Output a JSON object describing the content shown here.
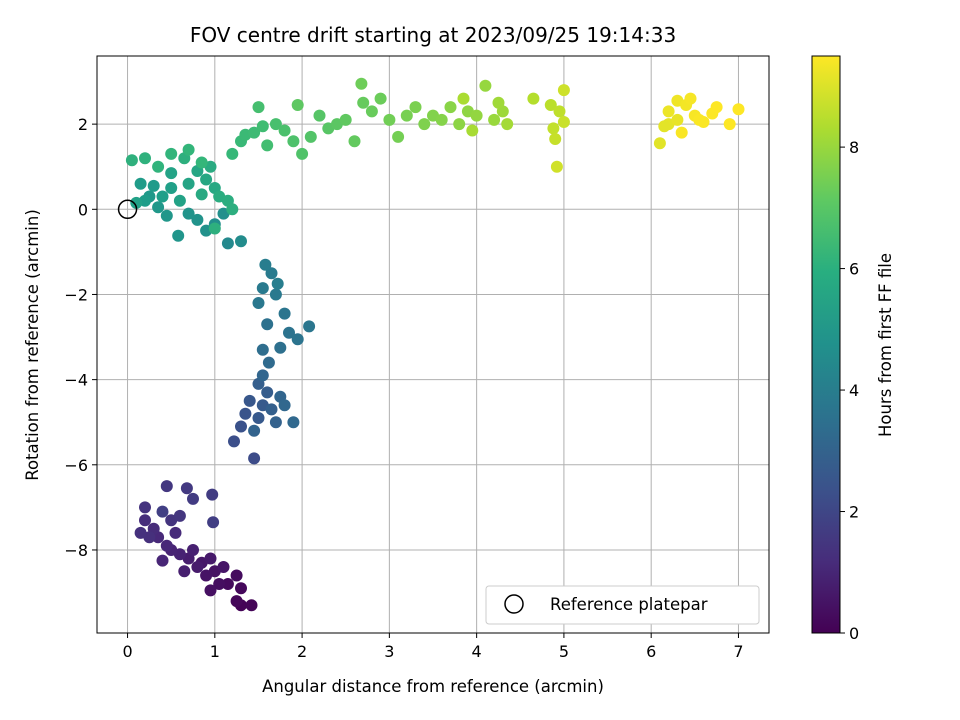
{
  "chart_data": {
    "type": "scatter",
    "title": "FOV centre drift starting at 2023/09/25 19:14:33",
    "xlabel": "Angular distance from reference (arcmin)",
    "ylabel": "Rotation from reference (arcmin)",
    "xlim": [
      -0.35,
      7.35
    ],
    "ylim": [
      -9.95,
      3.6
    ],
    "xticks": [
      0,
      1,
      2,
      3,
      4,
      5,
      6,
      7
    ],
    "yticks": [
      -8,
      -6,
      -4,
      -2,
      0,
      2
    ],
    "grid": true,
    "colormap": "viridis",
    "colorbar": {
      "label": "Hours from first FF file",
      "range": [
        0,
        9.5
      ],
      "ticks": [
        0,
        2,
        4,
        6,
        8
      ]
    },
    "legend": {
      "position": "bottom-right",
      "entries": [
        {
          "label": "Reference platepar",
          "marker": "hollow-circle"
        }
      ]
    },
    "reference_point": {
      "x": 0,
      "y": 0
    },
    "series": [
      {
        "points": [
          [
            1.3,
            -9.3,
            0.05
          ],
          [
            1.42,
            -9.3,
            0.1
          ],
          [
            1.25,
            -9.2,
            0.15
          ],
          [
            1.3,
            -8.9,
            0.2
          ],
          [
            1.15,
            -8.8,
            0.25
          ],
          [
            1.25,
            -8.6,
            0.3
          ],
          [
            1.05,
            -8.8,
            0.35
          ],
          [
            0.95,
            -8.95,
            0.4
          ],
          [
            1.0,
            -8.5,
            0.45
          ],
          [
            0.9,
            -8.6,
            0.5
          ],
          [
            1.1,
            -8.4,
            0.55
          ],
          [
            0.85,
            -8.3,
            0.6
          ],
          [
            0.95,
            -8.2,
            0.65
          ],
          [
            0.8,
            -8.4,
            0.7
          ],
          [
            0.7,
            -8.2,
            0.75
          ],
          [
            0.65,
            -8.5,
            0.8
          ],
          [
            0.75,
            -8.0,
            0.85
          ],
          [
            0.6,
            -8.1,
            0.9
          ],
          [
            0.5,
            -8.0,
            0.95
          ],
          [
            0.4,
            -8.25,
            1.0
          ],
          [
            0.45,
            -7.9,
            1.05
          ],
          [
            0.35,
            -7.7,
            1.1
          ],
          [
            0.55,
            -7.6,
            1.15
          ],
          [
            0.3,
            -7.5,
            1.2
          ],
          [
            0.2,
            -7.3,
            1.25
          ],
          [
            0.25,
            -7.7,
            1.3
          ],
          [
            0.15,
            -7.6,
            1.35
          ],
          [
            0.2,
            -7.0,
            1.4
          ],
          [
            0.5,
            -7.3,
            1.45
          ],
          [
            0.6,
            -7.2,
            1.5
          ],
          [
            0.45,
            -6.5,
            1.55
          ],
          [
            0.68,
            -6.55,
            1.6
          ],
          [
            0.75,
            -6.8,
            1.65
          ],
          [
            0.97,
            -6.7,
            1.7
          ],
          [
            0.98,
            -7.35,
            1.75
          ],
          [
            0.4,
            -7.1,
            1.8
          ],
          [
            1.45,
            -5.85,
            2.2
          ],
          [
            1.22,
            -5.45,
            2.3
          ],
          [
            1.3,
            -5.1,
            2.4
          ],
          [
            1.35,
            -4.8,
            2.5
          ],
          [
            1.4,
            -4.5,
            2.6
          ],
          [
            1.5,
            -4.9,
            2.65
          ],
          [
            1.55,
            -4.6,
            2.7
          ],
          [
            1.6,
            -4.3,
            2.8
          ],
          [
            1.5,
            -4.1,
            2.85
          ],
          [
            1.65,
            -4.7,
            2.9
          ],
          [
            1.7,
            -5.0,
            2.95
          ],
          [
            1.45,
            -5.2,
            3.0
          ],
          [
            1.75,
            -4.4,
            3.05
          ],
          [
            1.55,
            -3.9,
            3.1
          ],
          [
            1.8,
            -4.6,
            3.15
          ],
          [
            1.9,
            -5.0,
            3.2
          ],
          [
            1.62,
            -3.6,
            3.3
          ],
          [
            1.55,
            -3.3,
            3.4
          ],
          [
            1.75,
            -3.25,
            3.5
          ],
          [
            1.6,
            -2.7,
            3.55
          ],
          [
            1.85,
            -2.9,
            3.6
          ],
          [
            1.95,
            -3.05,
            3.65
          ],
          [
            1.8,
            -2.45,
            3.7
          ],
          [
            2.08,
            -2.75,
            3.75
          ],
          [
            1.5,
            -2.2,
            3.8
          ],
          [
            1.7,
            -2.0,
            3.85
          ],
          [
            1.55,
            -1.85,
            3.9
          ],
          [
            1.65,
            -1.5,
            3.95
          ],
          [
            1.58,
            -1.3,
            4.0
          ],
          [
            1.72,
            -1.75,
            4.05
          ],
          [
            1.15,
            -0.8,
            4.5
          ],
          [
            1.3,
            -0.75,
            4.6
          ],
          [
            1.0,
            -0.35,
            4.7
          ],
          [
            1.1,
            -0.1,
            4.75
          ],
          [
            0.9,
            -0.5,
            4.8
          ],
          [
            0.8,
            -0.25,
            4.85
          ],
          [
            0.7,
            -0.1,
            4.9
          ],
          [
            0.58,
            -0.62,
            4.95
          ],
          [
            0.45,
            -0.15,
            5.0
          ],
          [
            0.35,
            0.05,
            5.05
          ],
          [
            0.25,
            0.3,
            5.1
          ],
          [
            0.3,
            0.55,
            5.15
          ],
          [
            0.15,
            0.6,
            5.2
          ],
          [
            0.2,
            0.2,
            5.25
          ],
          [
            0.4,
            0.3,
            5.3
          ],
          [
            0.5,
            0.5,
            5.35
          ],
          [
            0.1,
            0.15,
            5.4
          ],
          [
            0.6,
            0.2,
            5.45
          ],
          [
            0.5,
            0.85,
            5.5
          ],
          [
            0.7,
            0.6,
            5.55
          ],
          [
            0.8,
            0.9,
            5.6
          ],
          [
            0.9,
            0.7,
            5.65
          ],
          [
            1.0,
            0.5,
            5.7
          ],
          [
            0.85,
            0.35,
            5.75
          ],
          [
            0.95,
            1.0,
            5.8
          ],
          [
            1.05,
            0.3,
            5.85
          ],
          [
            1.15,
            0.2,
            5.9
          ],
          [
            1.2,
            0.0,
            5.95
          ],
          [
            1.0,
            -0.45,
            6.0
          ],
          [
            0.65,
            1.2,
            6.0
          ],
          [
            0.05,
            1.15,
            6.05
          ],
          [
            0.2,
            1.2,
            6.1
          ],
          [
            0.35,
            1.0,
            6.15
          ],
          [
            0.5,
            1.3,
            6.2
          ],
          [
            0.7,
            1.4,
            6.25
          ],
          [
            0.85,
            1.1,
            6.3
          ],
          [
            1.2,
            1.3,
            6.35
          ],
          [
            1.3,
            1.6,
            6.4
          ],
          [
            1.35,
            1.75,
            6.45
          ],
          [
            1.45,
            1.8,
            6.5
          ],
          [
            1.55,
            1.95,
            6.55
          ],
          [
            1.6,
            1.5,
            6.6
          ],
          [
            1.5,
            2.4,
            6.65
          ],
          [
            1.7,
            2.0,
            6.7
          ],
          [
            1.8,
            1.85,
            6.75
          ],
          [
            1.9,
            1.6,
            6.8
          ],
          [
            2.0,
            1.3,
            6.85
          ],
          [
            2.1,
            1.7,
            6.9
          ],
          [
            2.2,
            2.2,
            6.95
          ],
          [
            2.3,
            1.9,
            7.0
          ],
          [
            2.4,
            2.0,
            7.05
          ],
          [
            1.95,
            2.45,
            7.1
          ],
          [
            2.5,
            2.1,
            7.15
          ],
          [
            2.6,
            1.6,
            7.2
          ],
          [
            2.7,
            2.5,
            7.25
          ],
          [
            2.8,
            2.3,
            7.3
          ],
          [
            2.9,
            2.6,
            7.35
          ],
          [
            2.68,
            2.95,
            7.4
          ],
          [
            3.0,
            2.1,
            7.45
          ],
          [
            3.1,
            1.7,
            7.5
          ],
          [
            3.2,
            2.2,
            7.55
          ],
          [
            3.3,
            2.4,
            7.6
          ],
          [
            3.4,
            2.0,
            7.65
          ],
          [
            3.5,
            2.2,
            7.7
          ],
          [
            3.6,
            2.1,
            7.75
          ],
          [
            3.7,
            2.4,
            7.8
          ],
          [
            3.8,
            2.0,
            7.85
          ],
          [
            3.9,
            2.3,
            7.9
          ],
          [
            4.0,
            2.2,
            7.95
          ],
          [
            4.1,
            2.9,
            8.0
          ],
          [
            4.2,
            2.1,
            8.05
          ],
          [
            4.3,
            2.3,
            8.1
          ],
          [
            4.25,
            2.5,
            8.15
          ],
          [
            4.35,
            2.0,
            8.2
          ],
          [
            3.95,
            1.85,
            8.25
          ],
          [
            3.85,
            2.6,
            8.3
          ],
          [
            4.65,
            2.6,
            8.45
          ],
          [
            4.85,
            2.45,
            8.55
          ],
          [
            4.95,
            2.3,
            8.6
          ],
          [
            4.88,
            1.9,
            8.65
          ],
          [
            4.9,
            1.65,
            8.7
          ],
          [
            5.0,
            2.05,
            8.75
          ],
          [
            5.0,
            2.8,
            8.8
          ],
          [
            4.92,
            1.0,
            8.85
          ],
          [
            6.1,
            1.55,
            9.1
          ],
          [
            6.2,
            2.0,
            9.15
          ],
          [
            6.3,
            2.1,
            9.2
          ],
          [
            6.2,
            2.3,
            9.25
          ],
          [
            6.3,
            2.55,
            9.3
          ],
          [
            6.4,
            2.45,
            9.35
          ],
          [
            6.45,
            2.6,
            9.4
          ],
          [
            6.5,
            2.2,
            9.42
          ],
          [
            6.35,
            1.8,
            9.44
          ],
          [
            6.55,
            2.1,
            9.46
          ],
          [
            6.7,
            2.25,
            9.48
          ],
          [
            6.75,
            2.4,
            9.5
          ],
          [
            6.9,
            2.0,
            9.5
          ],
          [
            7.0,
            2.35,
            9.5
          ],
          [
            6.6,
            2.05,
            9.45
          ],
          [
            6.15,
            1.95,
            9.12
          ]
        ]
      }
    ]
  }
}
